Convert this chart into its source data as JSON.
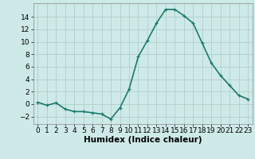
{
  "x": [
    0,
    1,
    2,
    3,
    4,
    5,
    6,
    7,
    8,
    9,
    10,
    11,
    12,
    13,
    14,
    15,
    16,
    17,
    18,
    19,
    20,
    21,
    22,
    23
  ],
  "y": [
    0.3,
    -0.2,
    0.2,
    -0.8,
    -1.2,
    -1.2,
    -1.4,
    -1.6,
    -2.4,
    -0.6,
    2.4,
    7.6,
    10.2,
    13.0,
    15.2,
    15.2,
    14.2,
    13.0,
    9.8,
    6.6,
    4.6,
    3.0,
    1.4,
    0.8
  ],
  "line_color": "#1a7a6e",
  "marker": "+",
  "marker_size": 3.5,
  "linewidth": 1.2,
  "bg_color": "#ceeae8",
  "grid_color": "#b0ceca",
  "xlabel": "Humidex (Indice chaleur)",
  "xlabel_fontsize": 7.5,
  "xlim": [
    -0.5,
    23.5
  ],
  "ylim": [
    -3.2,
    16.2
  ],
  "yticks": [
    -2,
    0,
    2,
    4,
    6,
    8,
    10,
    12,
    14
  ],
  "xticks": [
    0,
    1,
    2,
    3,
    4,
    5,
    6,
    7,
    8,
    9,
    10,
    11,
    12,
    13,
    14,
    15,
    16,
    17,
    18,
    19,
    20,
    21,
    22,
    23
  ],
  "tick_fontsize": 6.5
}
